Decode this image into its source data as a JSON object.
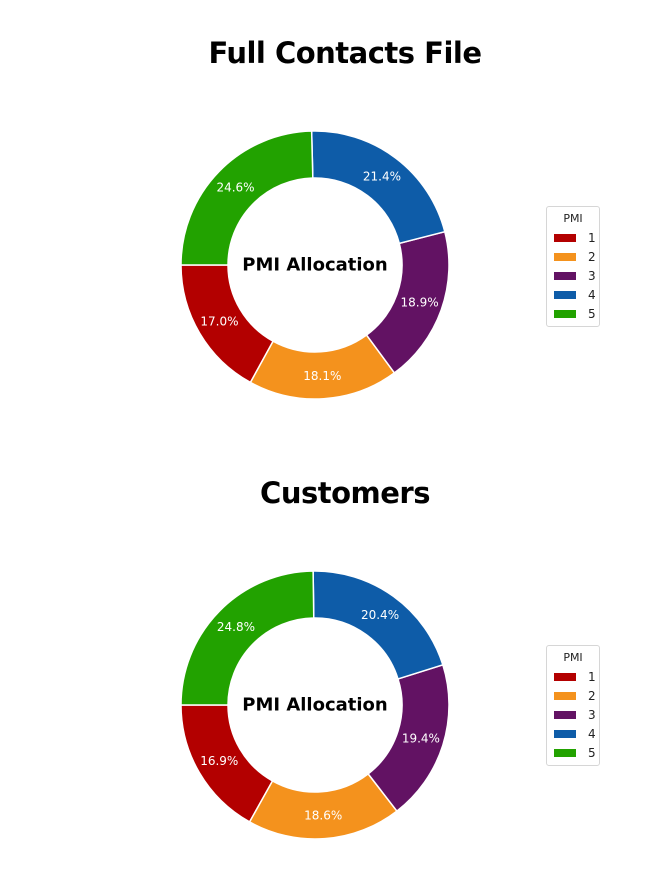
{
  "chart_data": [
    {
      "type": "pie",
      "title": "Full Contacts File",
      "center_label": "PMI Allocation",
      "legend": {
        "title": "PMI",
        "position": "right"
      },
      "categories": [
        "1",
        "2",
        "3",
        "4",
        "5"
      ],
      "values": [
        17.0,
        18.1,
        18.9,
        21.4,
        24.6
      ],
      "value_labels": [
        "17.0%",
        "18.1%",
        "18.9%",
        "21.4%",
        "24.6%"
      ],
      "colors": [
        "#b30000",
        "#f4921d",
        "#621263",
        "#0e5ca8",
        "#22a200"
      ]
    },
    {
      "type": "pie",
      "title": "Customers",
      "center_label": "PMI Allocation",
      "legend": {
        "title": "PMI",
        "position": "right"
      },
      "categories": [
        "1",
        "2",
        "3",
        "4",
        "5"
      ],
      "values": [
        16.9,
        18.6,
        19.4,
        20.4,
        24.8
      ],
      "value_labels": [
        "16.9%",
        "18.6%",
        "19.4%",
        "20.4%",
        "24.8%"
      ],
      "colors": [
        "#b30000",
        "#f4921d",
        "#621263",
        "#0e5ca8",
        "#22a200"
      ]
    }
  ]
}
